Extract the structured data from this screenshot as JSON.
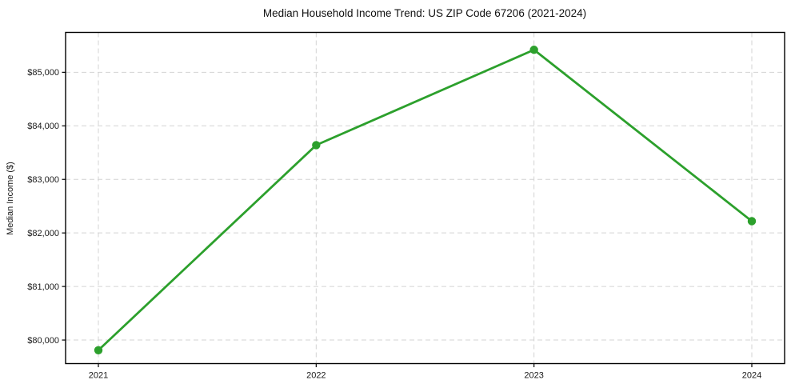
{
  "page": {
    "background": "#ffffff"
  },
  "chart_data": {
    "type": "line",
    "title": "Median Household Income Trend: US ZIP Code 67206 (2021-2024)",
    "xlabel": "",
    "ylabel": "Median Income ($)",
    "x": [
      "2021",
      "2022",
      "2023",
      "2024"
    ],
    "series": [
      {
        "name": "Median Income",
        "values": [
          79810,
          83640,
          85420,
          82220
        ],
        "color": "#2ca02c",
        "marker": "circle"
      }
    ],
    "ylim": [
      79560,
      85745
    ],
    "yticks": [
      80000,
      81000,
      82000,
      83000,
      84000,
      85000
    ],
    "ytick_labels": [
      "$80,000",
      "$81,000",
      "$82,000",
      "$83,000",
      "$84,000",
      "$85,000"
    ],
    "grid": true,
    "grid_style": "dashed",
    "grid_color": "#d3d3d3",
    "axis_color": "#000000",
    "tick_color": "#000000",
    "text_color": "#1a1a1a",
    "legend": "none"
  }
}
